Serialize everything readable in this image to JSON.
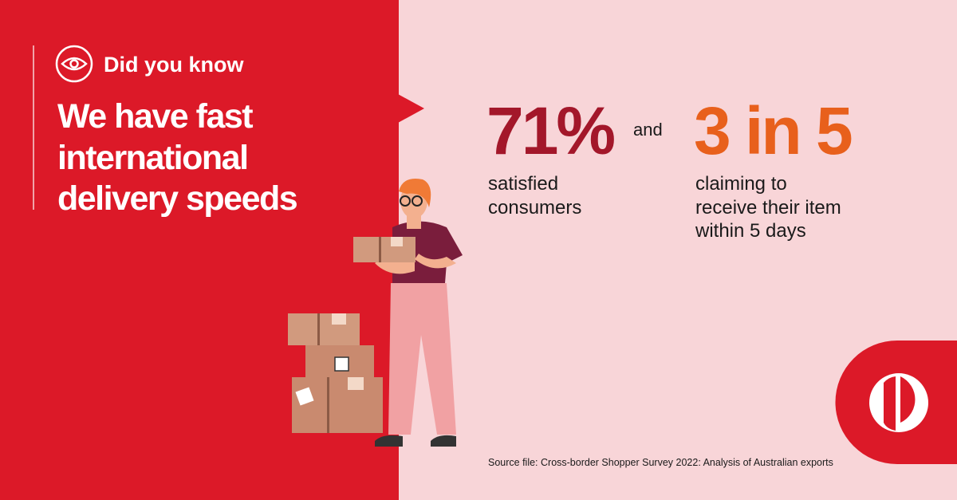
{
  "badge": "Did you know",
  "headline": [
    "We have fast",
    "international",
    "delivery speeds"
  ],
  "stats": [
    {
      "figure": "71%",
      "description": [
        "satisfied",
        "consumers"
      ]
    },
    {
      "figure": "3 in 5",
      "description": [
        "claiming to",
        "receive their item",
        "within 5 days"
      ]
    }
  ],
  "connector": "and",
  "source": "Source file: Cross-border Shopper Survey 2022: Analysis of Australian exports"
}
